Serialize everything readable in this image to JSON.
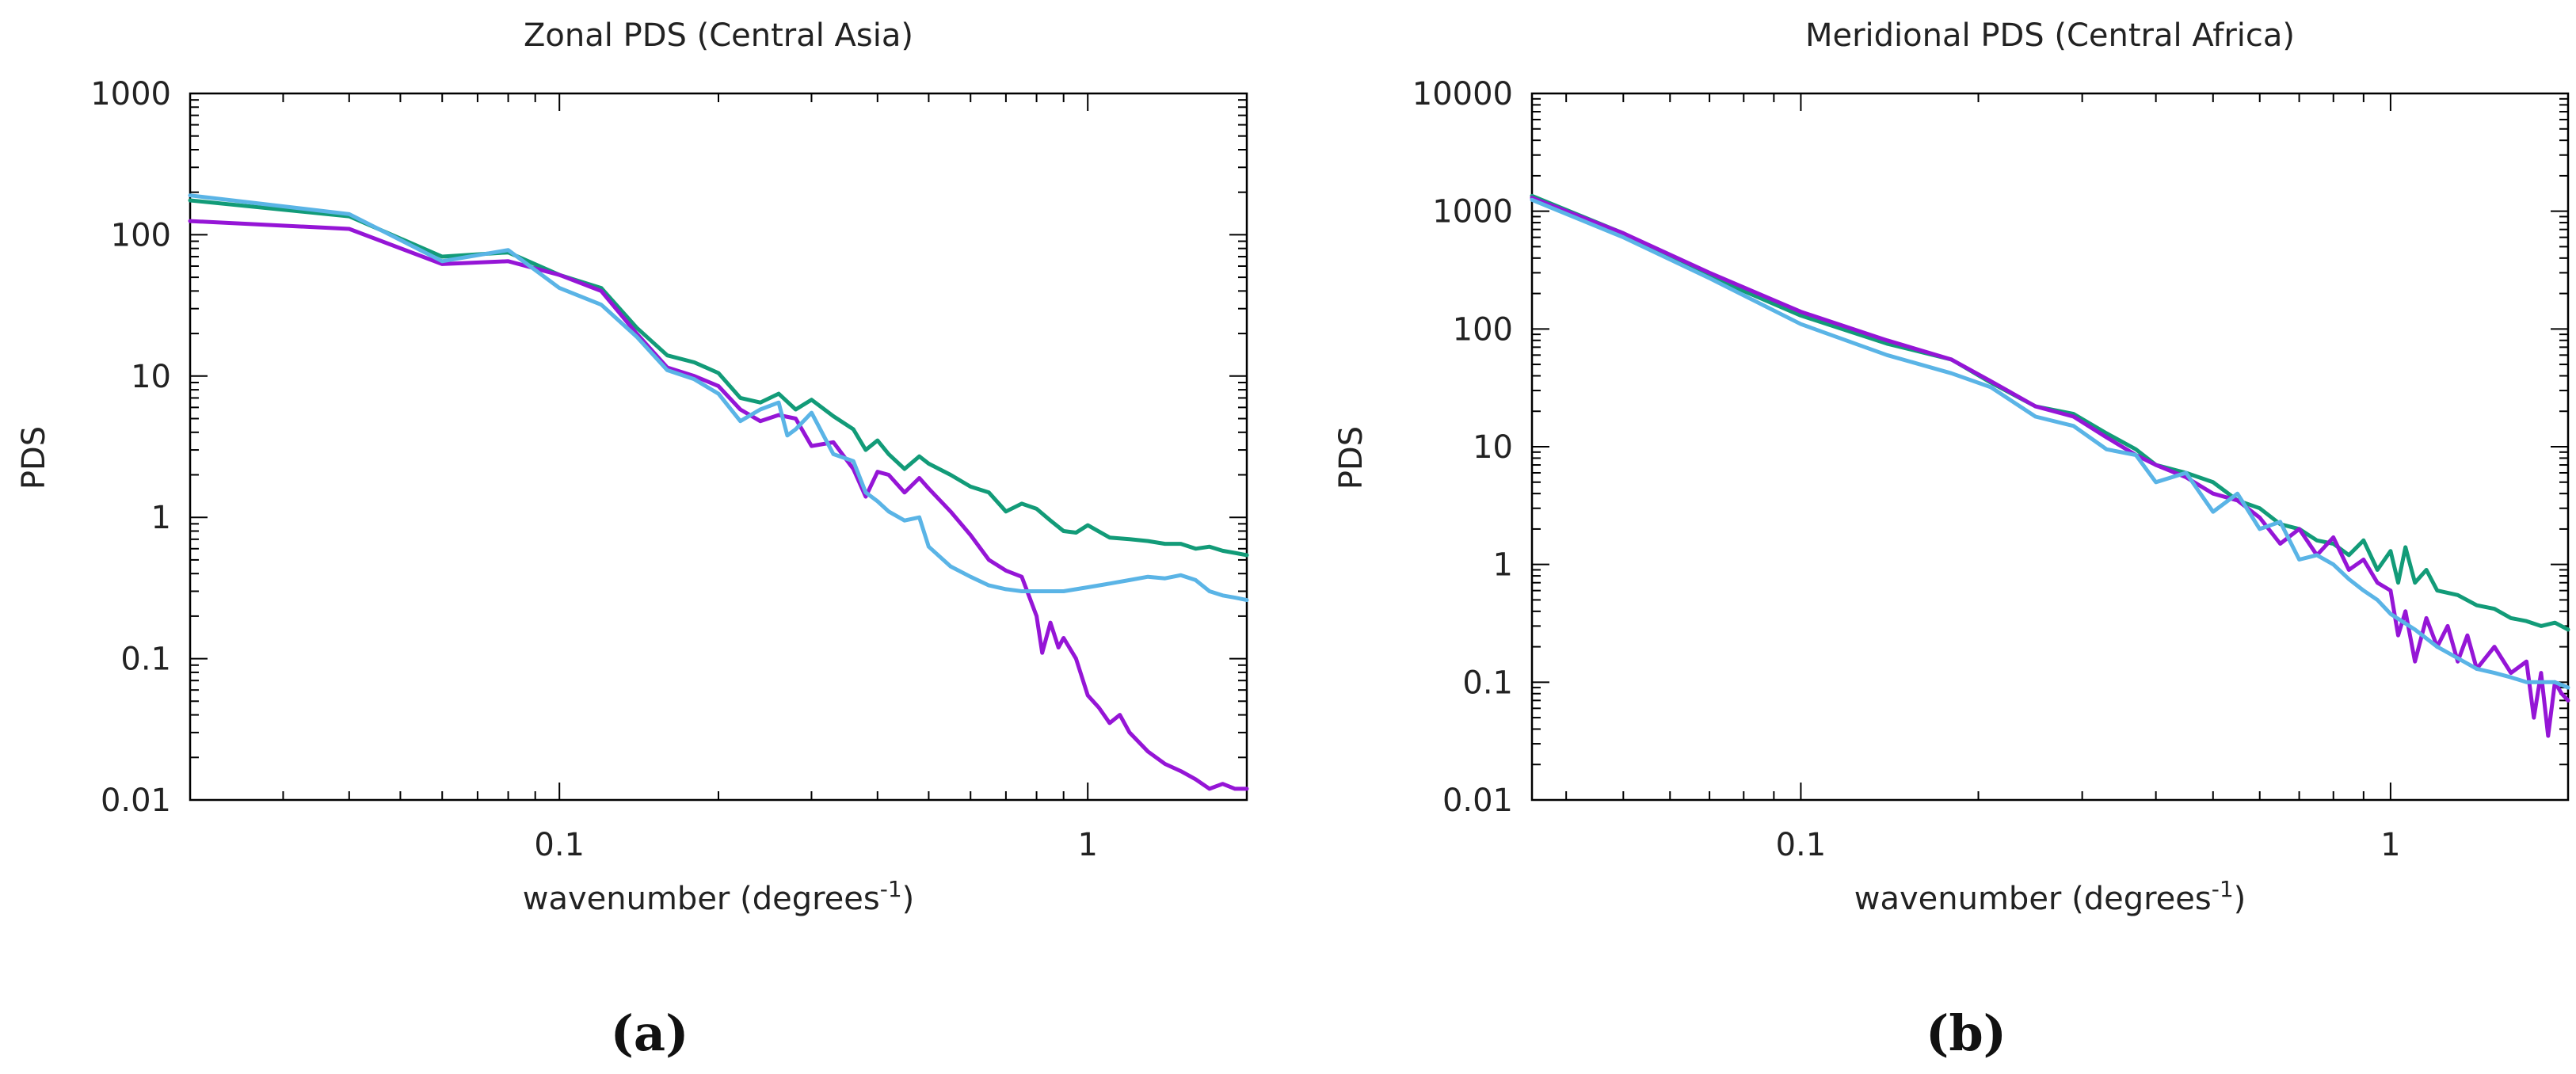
{
  "colors": {
    "green": "#129b78",
    "purple": "#9515d6",
    "blue": "#5ab4e6",
    "axis": "#000000"
  },
  "chart_data": [
    {
      "type": "line",
      "title": "Zonal PDS (Central Asia)",
      "caption": "(a)",
      "xlabel": "wavenumber (degrees",
      "xlabel_sup": "-1",
      "xlabel_close": ")",
      "ylabel": "PDS",
      "xscale": "log",
      "yscale": "log",
      "xlim": [
        0.02,
        2.0
      ],
      "ylim": [
        0.01,
        1000
      ],
      "xticks": [
        {
          "v": 0.1,
          "label": "0.1"
        },
        {
          "v": 1,
          "label": "1"
        }
      ],
      "yticks": [
        {
          "v": 1000,
          "label": "1000"
        },
        {
          "v": 100,
          "label": "100"
        },
        {
          "v": 10,
          "label": "10"
        },
        {
          "v": 1,
          "label": "1"
        },
        {
          "v": 0.1,
          "label": "0.1"
        },
        {
          "v": 0.01,
          "label": "0.01"
        }
      ],
      "series": [
        {
          "name": "green",
          "color": "#129b78",
          "x": [
            0.02,
            0.04,
            0.06,
            0.08,
            0.1,
            0.12,
            0.14,
            0.16,
            0.18,
            0.2,
            0.22,
            0.24,
            0.26,
            0.28,
            0.3,
            0.33,
            0.36,
            0.38,
            0.4,
            0.42,
            0.45,
            0.48,
            0.5,
            0.55,
            0.6,
            0.65,
            0.7,
            0.75,
            0.8,
            0.85,
            0.9,
            0.95,
            1.0,
            1.1,
            1.2,
            1.3,
            1.4,
            1.5,
            1.6,
            1.7,
            1.8,
            1.9,
            2.0
          ],
          "y": [
            175,
            135,
            70,
            75,
            52,
            42,
            22,
            14,
            12.5,
            10.5,
            7,
            6.5,
            7.5,
            5.8,
            6.8,
            5.2,
            4.2,
            3.0,
            3.5,
            2.8,
            2.2,
            2.7,
            2.4,
            2.0,
            1.65,
            1.5,
            1.1,
            1.25,
            1.15,
            0.95,
            0.8,
            0.78,
            0.88,
            0.72,
            0.7,
            0.68,
            0.65,
            0.65,
            0.6,
            0.62,
            0.58,
            0.56,
            0.54
          ]
        },
        {
          "name": "purple",
          "color": "#9515d6",
          "x": [
            0.02,
            0.04,
            0.06,
            0.08,
            0.1,
            0.12,
            0.14,
            0.16,
            0.18,
            0.2,
            0.22,
            0.24,
            0.26,
            0.28,
            0.3,
            0.33,
            0.36,
            0.38,
            0.4,
            0.42,
            0.45,
            0.48,
            0.5,
            0.55,
            0.6,
            0.65,
            0.7,
            0.75,
            0.8,
            0.82,
            0.85,
            0.88,
            0.9,
            0.95,
            1.0,
            1.05,
            1.1,
            1.15,
            1.2,
            1.3,
            1.4,
            1.5,
            1.6,
            1.7,
            1.8,
            1.9,
            2.0
          ],
          "y": [
            125,
            110,
            62,
            65,
            52,
            40,
            20,
            11.5,
            10,
            8.5,
            5.8,
            4.8,
            5.3,
            5.0,
            3.2,
            3.4,
            2.2,
            1.4,
            2.1,
            2.0,
            1.5,
            1.9,
            1.6,
            1.1,
            0.75,
            0.5,
            0.42,
            0.38,
            0.2,
            0.11,
            0.18,
            0.12,
            0.14,
            0.1,
            0.055,
            0.045,
            0.035,
            0.04,
            0.03,
            0.022,
            0.018,
            0.016,
            0.014,
            0.012,
            0.013,
            0.012,
            0.012
          ]
        },
        {
          "name": "blue",
          "color": "#5ab4e6",
          "x": [
            0.02,
            0.04,
            0.06,
            0.08,
            0.1,
            0.12,
            0.14,
            0.16,
            0.18,
            0.2,
            0.22,
            0.24,
            0.26,
            0.27,
            0.28,
            0.3,
            0.33,
            0.36,
            0.38,
            0.4,
            0.42,
            0.45,
            0.48,
            0.5,
            0.55,
            0.6,
            0.65,
            0.7,
            0.75,
            0.8,
            0.9,
            1.0,
            1.1,
            1.2,
            1.3,
            1.4,
            1.5,
            1.6,
            1.7,
            1.8,
            1.9,
            2.0
          ],
          "y": [
            190,
            140,
            65,
            78,
            42,
            32,
            19,
            11,
            9.5,
            7.5,
            4.8,
            5.8,
            6.5,
            3.8,
            4.2,
            5.5,
            2.8,
            2.5,
            1.5,
            1.3,
            1.1,
            0.95,
            1.0,
            0.62,
            0.45,
            0.38,
            0.33,
            0.31,
            0.3,
            0.3,
            0.3,
            0.32,
            0.34,
            0.36,
            0.38,
            0.37,
            0.39,
            0.36,
            0.3,
            0.28,
            0.27,
            0.26
          ]
        }
      ]
    },
    {
      "type": "line",
      "title": "Meridional PDS (Central Africa)",
      "caption": "(b)",
      "xlabel": "wavenumber (degrees",
      "xlabel_sup": "-1",
      "xlabel_close": ")",
      "ylabel": "PDS",
      "xscale": "log",
      "yscale": "log",
      "xlim": [
        0.035,
        2.0
      ],
      "ylim": [
        0.01,
        10000
      ],
      "xticks": [
        {
          "v": 0.1,
          "label": "0.1"
        },
        {
          "v": 1,
          "label": "1"
        }
      ],
      "yticks": [
        {
          "v": 10000,
          "label": "10000"
        },
        {
          "v": 1000,
          "label": "1000"
        },
        {
          "v": 100,
          "label": "100"
        },
        {
          "v": 10,
          "label": "10"
        },
        {
          "v": 1,
          "label": "1"
        },
        {
          "v": 0.1,
          "label": "0.1"
        },
        {
          "v": 0.01,
          "label": "0.01"
        }
      ],
      "series": [
        {
          "name": "green",
          "color": "#129b78",
          "x": [
            0.035,
            0.05,
            0.07,
            0.1,
            0.14,
            0.18,
            0.21,
            0.25,
            0.29,
            0.33,
            0.37,
            0.4,
            0.45,
            0.5,
            0.55,
            0.6,
            0.65,
            0.7,
            0.75,
            0.8,
            0.85,
            0.9,
            0.95,
            1.0,
            1.03,
            1.06,
            1.1,
            1.15,
            1.2,
            1.3,
            1.4,
            1.5,
            1.6,
            1.7,
            1.8,
            1.9,
            2.0
          ],
          "y": [
            1350,
            650,
            280,
            130,
            75,
            55,
            35,
            22,
            19,
            13,
            9.5,
            7,
            6.0,
            5.0,
            3.5,
            3.0,
            2.2,
            2.0,
            1.6,
            1.5,
            1.2,
            1.6,
            0.9,
            1.3,
            0.7,
            1.4,
            0.7,
            0.9,
            0.6,
            0.55,
            0.45,
            0.42,
            0.35,
            0.33,
            0.3,
            0.32,
            0.28
          ]
        },
        {
          "name": "purple",
          "color": "#9515d6",
          "x": [
            0.035,
            0.05,
            0.07,
            0.1,
            0.14,
            0.18,
            0.21,
            0.25,
            0.29,
            0.33,
            0.37,
            0.4,
            0.45,
            0.5,
            0.55,
            0.6,
            0.65,
            0.7,
            0.75,
            0.8,
            0.85,
            0.9,
            0.95,
            1.0,
            1.03,
            1.06,
            1.1,
            1.15,
            1.2,
            1.25,
            1.3,
            1.35,
            1.4,
            1.5,
            1.6,
            1.7,
            1.75,
            1.8,
            1.85,
            1.9,
            1.95,
            2.0
          ],
          "y": [
            1300,
            650,
            300,
            140,
            80,
            55,
            36,
            22,
            18,
            12,
            8.5,
            7,
            5.5,
            4.0,
            3.5,
            2.5,
            1.5,
            2.0,
            1.2,
            1.7,
            0.9,
            1.1,
            0.7,
            0.6,
            0.25,
            0.4,
            0.15,
            0.35,
            0.2,
            0.3,
            0.15,
            0.25,
            0.13,
            0.2,
            0.12,
            0.15,
            0.05,
            0.12,
            0.035,
            0.1,
            0.08,
            0.07
          ]
        },
        {
          "name": "blue",
          "color": "#5ab4e6",
          "x": [
            0.035,
            0.05,
            0.07,
            0.1,
            0.14,
            0.18,
            0.21,
            0.25,
            0.29,
            0.33,
            0.37,
            0.4,
            0.45,
            0.5,
            0.55,
            0.6,
            0.65,
            0.7,
            0.75,
            0.8,
            0.85,
            0.9,
            0.95,
            1.0,
            1.1,
            1.2,
            1.3,
            1.4,
            1.5,
            1.6,
            1.7,
            1.8,
            1.9,
            2.0
          ],
          "y": [
            1250,
            600,
            270,
            110,
            60,
            42,
            32,
            18,
            15,
            9.5,
            8.5,
            5,
            6,
            2.8,
            4,
            2.0,
            2.3,
            1.1,
            1.2,
            1.0,
            0.75,
            0.6,
            0.5,
            0.38,
            0.28,
            0.2,
            0.16,
            0.13,
            0.12,
            0.11,
            0.1,
            0.1,
            0.1,
            0.09
          ]
        }
      ]
    }
  ]
}
